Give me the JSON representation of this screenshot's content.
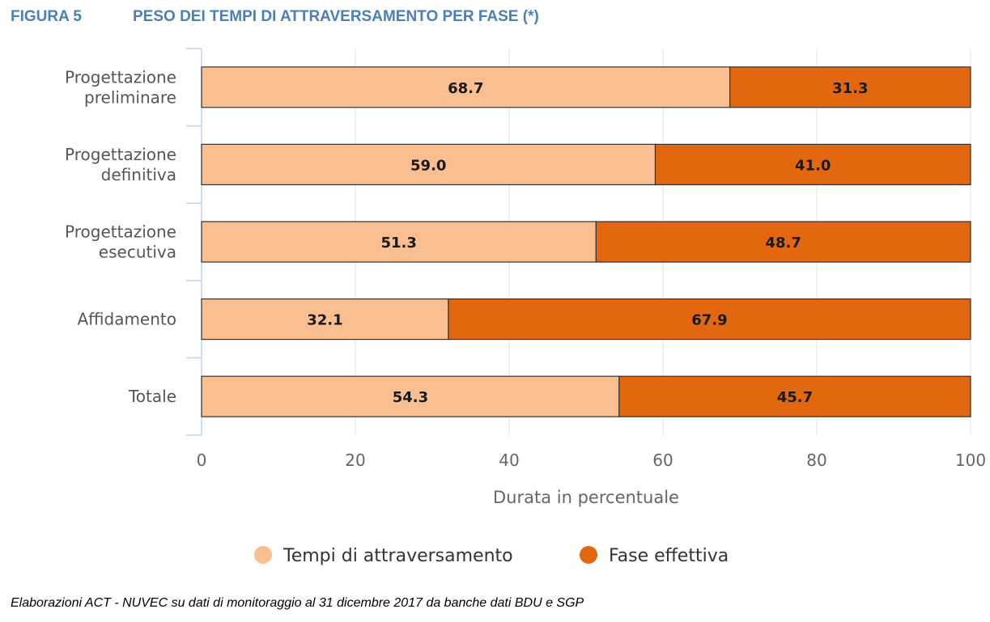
{
  "header": {
    "figure_number": "FIGURA 5",
    "title": "PESO DEI TEMPI DI ATTRAVERSAMENTO PER FASE (*)"
  },
  "chart_data": {
    "type": "bar",
    "orientation": "horizontal",
    "stacked": true,
    "categories": [
      [
        "Progettazione",
        "preliminare"
      ],
      [
        "Progettazione",
        "definitiva"
      ],
      [
        "Progettazione",
        "esecutiva"
      ],
      [
        "Affidamento"
      ],
      [
        "Totale"
      ]
    ],
    "series": [
      {
        "name": "Tempi di attraversamento",
        "color": "#f9bf91",
        "values": [
          68.7,
          59.0,
          51.3,
          32.1,
          54.3
        ],
        "labels": [
          "68.7",
          "59.0",
          "51.3",
          "32.1",
          "54.3"
        ]
      },
      {
        "name": "Fase effettiva",
        "color": "#e2670f",
        "values": [
          31.3,
          41.0,
          48.7,
          67.9,
          45.7
        ],
        "labels": [
          "31.3",
          "41.0",
          "48.7",
          "67.9",
          "45.7"
        ]
      }
    ],
    "xlabel": "Durata in percentuale",
    "ylabel": "",
    "xlim": [
      0,
      100
    ],
    "xticks": [
      0,
      20,
      40,
      60,
      80,
      100
    ],
    "xtick_labels": [
      "0",
      "20",
      "40",
      "60",
      "80",
      "100"
    ],
    "grid": "vertical",
    "legend_position": "bottom-center"
  },
  "source_note": "Elaborazioni ACT - NUVEC su dati di monitoraggio al 31 dicembre 2017 da banche dati BDU e SGP"
}
